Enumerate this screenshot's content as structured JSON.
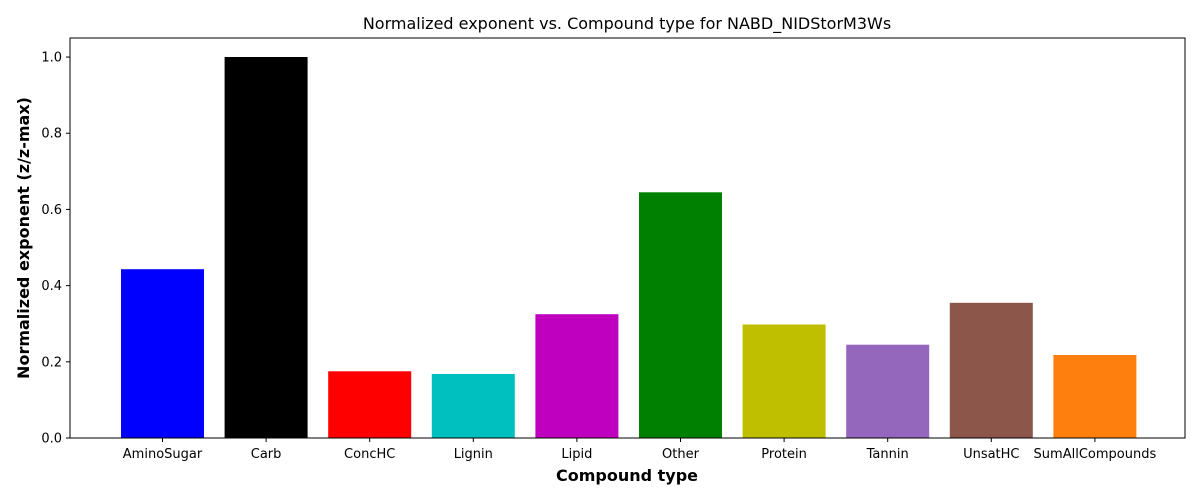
{
  "chart_data": {
    "type": "bar",
    "title": "Normalized exponent vs. Compound type for NABD_NIDStorM3Ws",
    "xlabel": "Compound type",
    "ylabel": "Normalized exponent (z/z-max)",
    "categories": [
      "AminoSugar",
      "Carb",
      "ConcHC",
      "Lignin",
      "Lipid",
      "Other",
      "Protein",
      "Tannin",
      "UnsatHC",
      "SumAllCompounds"
    ],
    "values": [
      0.443,
      1.0,
      0.175,
      0.168,
      0.325,
      0.645,
      0.298,
      0.245,
      0.355,
      0.218
    ],
    "colors": [
      "#0000ff",
      "#000000",
      "#ff0000",
      "#00bfbf",
      "#bf00bf",
      "#008000",
      "#bfbf00",
      "#9467bd",
      "#8c564b",
      "#ff7f0e"
    ],
    "ylim": [
      0,
      1.05
    ],
    "yticks": [
      "0.0",
      "0.2",
      "0.4",
      "0.6",
      "0.8",
      "1.0"
    ],
    "grid": false,
    "legend": "none"
  }
}
